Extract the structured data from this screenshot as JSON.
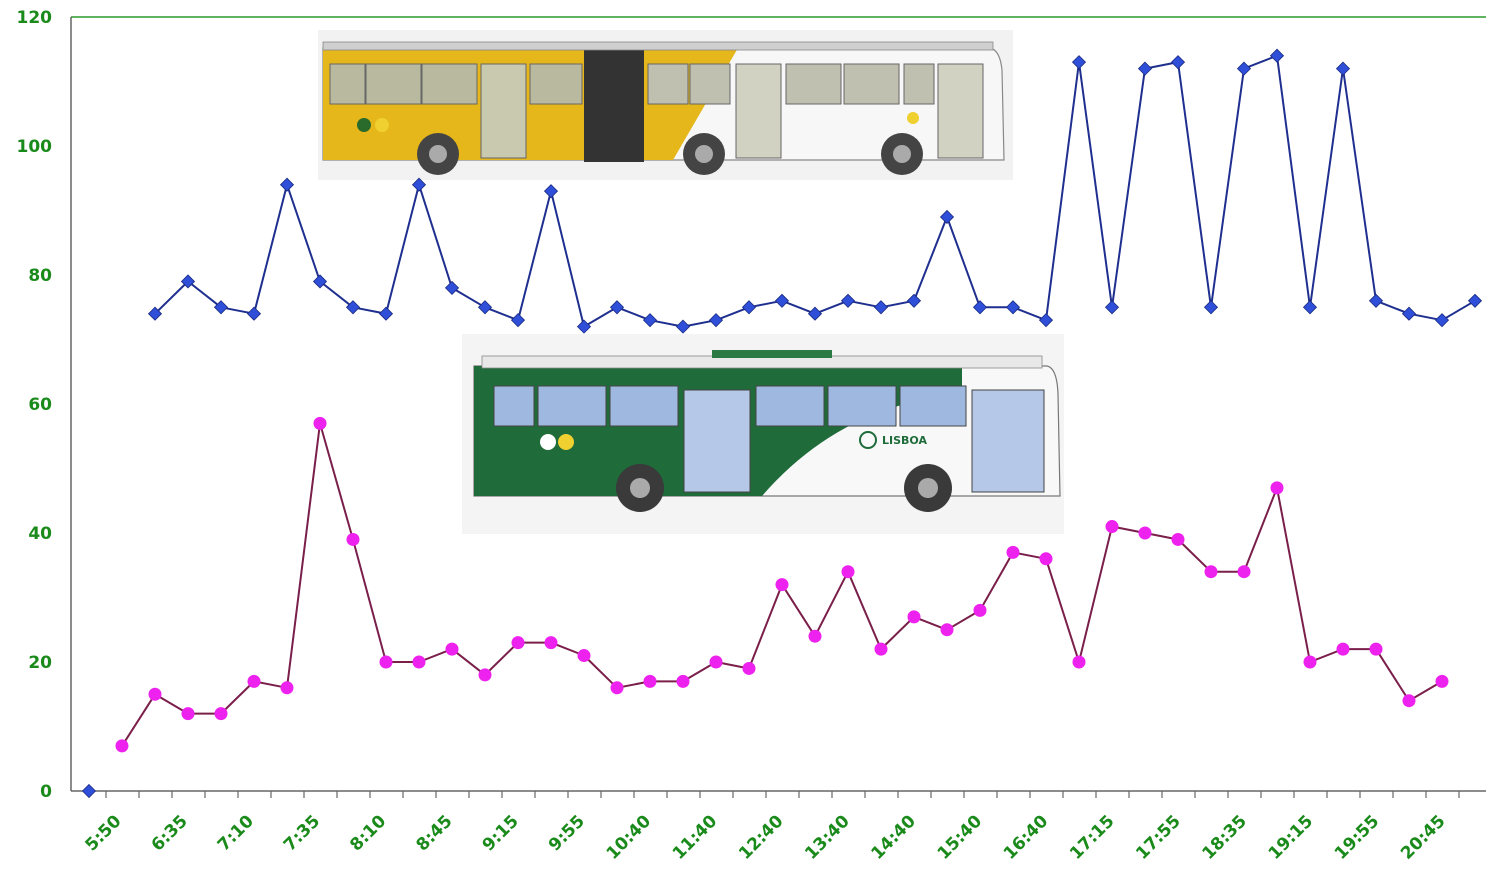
{
  "chart_data": {
    "type": "line",
    "title": "",
    "xlabel": "",
    "ylabel": "",
    "ylim": [
      0,
      120
    ],
    "yticks": [
      0,
      20,
      40,
      60,
      80,
      100,
      120
    ],
    "grid": false,
    "legend": "none",
    "x_tick_labels": [
      "5:50",
      "6:35",
      "7:10",
      "7:35",
      "8:10",
      "8:45",
      "9:15",
      "9:55",
      "10:40",
      "11:40",
      "12:40",
      "13:40",
      "14:40",
      "15:40",
      "16:40",
      "17:15",
      "17:55",
      "18:35",
      "19:15",
      "19:55",
      "20:45"
    ],
    "series": [
      {
        "marker": "diamond",
        "color": "#1f2f8f",
        "marker_color": "#2f4fd8",
        "values": [
          0,
          null,
          74,
          79,
          75,
          74,
          94,
          79,
          75,
          74,
          94,
          78,
          75,
          73,
          93,
          72,
          75,
          73,
          72,
          73,
          75,
          76,
          74,
          76,
          75,
          76,
          89,
          75,
          75,
          73,
          113,
          75,
          112,
          113,
          75,
          112,
          114,
          75,
          112,
          76,
          74,
          73,
          76
        ]
      },
      {
        "marker": "circle",
        "color": "#7a1e4a",
        "marker_color": "#ee22ee",
        "values": [
          null,
          7,
          15,
          12,
          12,
          17,
          16,
          57,
          39,
          20,
          20,
          22,
          18,
          23,
          23,
          21,
          16,
          17,
          17,
          20,
          19,
          32,
          24,
          34,
          22,
          27,
          25,
          28,
          37,
          36,
          20,
          41,
          40,
          39,
          34,
          34,
          47,
          20,
          22,
          22,
          14,
          17,
          null
        ]
      }
    ]
  },
  "images": {
    "articulated_bus": "articulated-bus-illustration",
    "green_bus": "green-bus-illustration",
    "green_bus_livery_text": "LISBOA"
  },
  "colors": {
    "axis_text": "#1a8a1a",
    "top_line": "#2a9a2a",
    "axis": "#666666"
  }
}
